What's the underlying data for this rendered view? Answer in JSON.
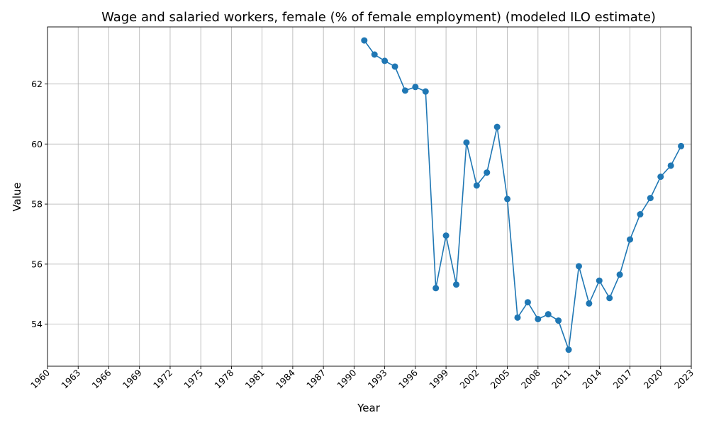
{
  "chart_data": {
    "type": "line",
    "title": "Wage and salaried workers, female (% of female employment) (modeled ILO estimate)",
    "xlabel": "Year",
    "ylabel": "Value",
    "xlim": [
      1960,
      2023
    ],
    "ylim": [
      52.6,
      63.9
    ],
    "xticks": [
      1960,
      1963,
      1966,
      1969,
      1972,
      1975,
      1978,
      1981,
      1984,
      1987,
      1990,
      1993,
      1996,
      1999,
      2002,
      2005,
      2008,
      2011,
      2014,
      2017,
      2020,
      2023
    ],
    "yticks": [
      54,
      56,
      58,
      60,
      62
    ],
    "grid": true,
    "color": "#1f77b4",
    "x": [
      1991,
      1992,
      1993,
      1994,
      1995,
      1996,
      1997,
      1998,
      1999,
      2000,
      2001,
      2002,
      2003,
      2004,
      2005,
      2006,
      2007,
      2008,
      2009,
      2010,
      2011,
      2012,
      2013,
      2014,
      2015,
      2016,
      2017,
      2018,
      2019,
      2020,
      2021,
      2022
    ],
    "values": [
      63.45,
      62.98,
      62.77,
      62.58,
      61.78,
      61.9,
      61.75,
      55.2,
      56.95,
      55.32,
      60.05,
      58.62,
      59.05,
      60.57,
      58.17,
      54.22,
      54.73,
      54.17,
      54.33,
      54.12,
      53.15,
      55.93,
      54.69,
      55.45,
      54.87,
      55.65,
      56.82,
      57.66,
      58.2,
      58.91,
      59.28,
      59.93
    ]
  }
}
